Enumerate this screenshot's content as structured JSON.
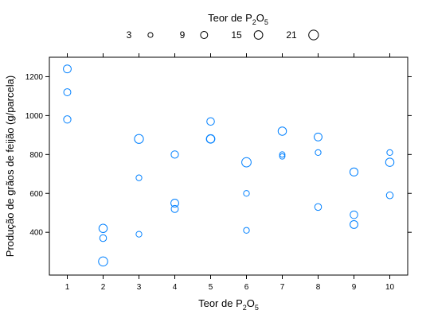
{
  "chart_data": {
    "type": "scatter",
    "legend_title": {
      "base": "Teor de P",
      "sub1": "2",
      "mid": "O",
      "sub2": "5"
    },
    "legend_position": "top",
    "legend_entries": [
      {
        "label": "3",
        "size": 3
      },
      {
        "label": "9",
        "size": 9
      },
      {
        "label": "15",
        "size": 15
      },
      {
        "label": "21",
        "size": 21
      }
    ],
    "xlabel": {
      "base": "Teor de P",
      "sub1": "2",
      "mid": "O",
      "sub2": "5"
    },
    "ylabel": "Produção de grãos de feijão (g/parcela)",
    "x_ticks": [
      "1",
      "2",
      "3",
      "4",
      "5",
      "6",
      "7",
      "8",
      "9",
      "10"
    ],
    "y_ticks": [
      "400",
      "600",
      "800",
      "1000",
      "1200"
    ],
    "xlim": [
      0.5,
      10.5
    ],
    "ylim": [
      180,
      1300
    ],
    "marker_color": "#0080ff",
    "points": [
      {
        "x": 1,
        "y": 1240,
        "size": 12
      },
      {
        "x": 1,
        "y": 1120,
        "size": 9
      },
      {
        "x": 1,
        "y": 980,
        "size": 10
      },
      {
        "x": 2,
        "y": 420,
        "size": 14
      },
      {
        "x": 2,
        "y": 370,
        "size": 8
      },
      {
        "x": 2,
        "y": 250,
        "size": 18
      },
      {
        "x": 3,
        "y": 880,
        "size": 17
      },
      {
        "x": 3,
        "y": 680,
        "size": 5
      },
      {
        "x": 3,
        "y": 390,
        "size": 5
      },
      {
        "x": 4,
        "y": 800,
        "size": 10
      },
      {
        "x": 4,
        "y": 550,
        "size": 12
      },
      {
        "x": 4,
        "y": 520,
        "size": 9
      },
      {
        "x": 5,
        "y": 970,
        "size": 11
      },
      {
        "x": 5,
        "y": 880,
        "size": 15
      },
      {
        "x": 5,
        "y": 880,
        "size": 13
      },
      {
        "x": 6,
        "y": 760,
        "size": 19
      },
      {
        "x": 6,
        "y": 600,
        "size": 5
      },
      {
        "x": 6,
        "y": 410,
        "size": 5
      },
      {
        "x": 7,
        "y": 920,
        "size": 14
      },
      {
        "x": 7,
        "y": 800,
        "size": 4
      },
      {
        "x": 7,
        "y": 790,
        "size": 4
      },
      {
        "x": 8,
        "y": 890,
        "size": 12
      },
      {
        "x": 8,
        "y": 810,
        "size": 5
      },
      {
        "x": 8,
        "y": 530,
        "size": 8
      },
      {
        "x": 9,
        "y": 710,
        "size": 13
      },
      {
        "x": 9,
        "y": 490,
        "size": 11
      },
      {
        "x": 9,
        "y": 440,
        "size": 12
      },
      {
        "x": 10,
        "y": 810,
        "size": 5
      },
      {
        "x": 10,
        "y": 760,
        "size": 14
      },
      {
        "x": 10,
        "y": 590,
        "size": 8
      }
    ]
  }
}
